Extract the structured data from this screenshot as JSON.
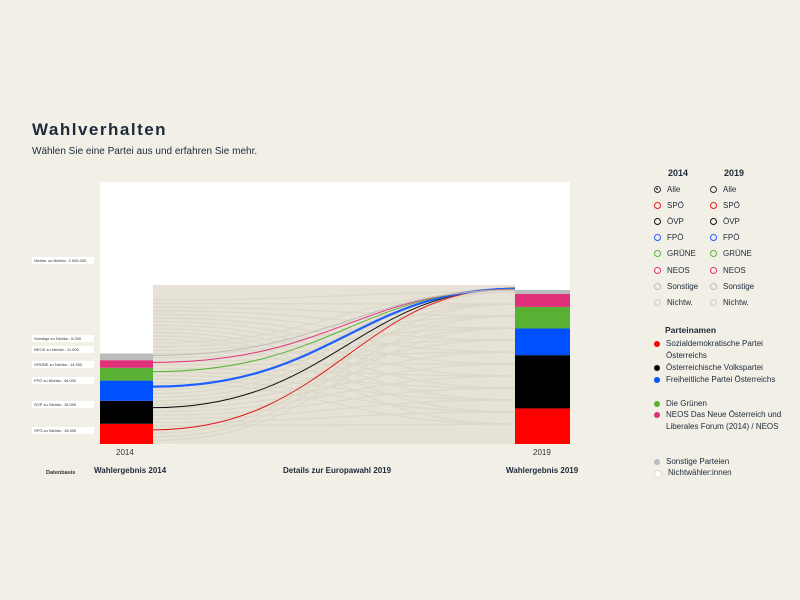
{
  "header": {
    "title": "Wahlverhalten",
    "subtitle": "Wählen Sie eine Partei aus und erfahren Sie mehr."
  },
  "legend": {
    "col2014": "2014",
    "col2019": "2019",
    "options": [
      "Alle",
      "SPÖ",
      "ÖVP",
      "FPÖ",
      "GRÜNE",
      "NEOS",
      "Sonstige",
      "Nichtw."
    ],
    "option_colors": [
      "#333333",
      "#e31a1c",
      "#111111",
      "#1f5fff",
      "#59b33b",
      "#e0337a",
      "#bbbbbb",
      "#eeeeee"
    ],
    "selected_2014": "Alle",
    "parteinamen_title": "Parteinamen",
    "parties": [
      {
        "name": "Sozialdemokratische Partei Österreichs",
        "color": "#ff0000"
      },
      {
        "name": "Österreichische Volkspartei",
        "color": "#000000"
      },
      {
        "name": "Freiheitliche Partei Österreichs",
        "color": "#0050ff"
      },
      {
        "name": "Die Grünen",
        "color": "#59b033"
      },
      {
        "name": "NEOS Das Neue Österreich und Liberales Forum (2014) / NEOS",
        "color": "#e0307a"
      },
      {
        "name": "Sonstige Parteien",
        "color": "#bbbbbb"
      },
      {
        "name": "Nichtwähler:innen",
        "color": "#ffffff"
      }
    ]
  },
  "flow_tags": [
    {
      "text": "Nichtw. zu Nichtw.: 2.926.000"
    },
    {
      "text": "Sonstige zu Nichtw.: 6.000"
    },
    {
      "text": "NEOS zu Nichtw.: 11.000"
    },
    {
      "text": "GRÜNE zu Nichtw.: 14.000"
    },
    {
      "text": "FPÖ zu Nichtw.: 44.000"
    },
    {
      "text": "ÖVP zu Nichtw.: 15.000"
    },
    {
      "text": "SPÖ zu Nichtw.: 18.000"
    }
  ],
  "footer": {
    "datenbasis": "Datenbasis",
    "left": "Wahlergebnis 2014",
    "center": "Details zur Europawahl 2019",
    "right": "Wahlergebnis 2019",
    "year_left": "2014",
    "year_right": "2019"
  },
  "chart_data": {
    "type": "sankey",
    "left_year": "2014",
    "right_year": "2019",
    "left_stack": [
      {
        "party": "SPÖ",
        "color": "#ff0000",
        "share": 0.077
      },
      {
        "party": "ÖVP",
        "color": "#000000",
        "share": 0.088
      },
      {
        "party": "FPÖ",
        "color": "#0050ff",
        "share": 0.077
      },
      {
        "party": "GRÜNE",
        "color": "#59b033",
        "share": 0.049
      },
      {
        "party": "NEOS",
        "color": "#e0307a",
        "share": 0.029
      },
      {
        "party": "Sonstige",
        "color": "#bbbbbb",
        "share": 0.026
      },
      {
        "party": "Nichtw.",
        "color": "#ffffff",
        "share": 0.654
      }
    ],
    "right_stack": [
      {
        "party": "SPÖ",
        "color": "#ff0000",
        "share": 0.231
      },
      {
        "party": "ÖVP",
        "color": "#000000",
        "share": 0.346
      },
      {
        "party": "FPÖ",
        "color": "#0050ff",
        "share": 0.173
      },
      {
        "party": "GRÜNE",
        "color": "#59b033",
        "share": 0.14
      },
      {
        "party": "NEOS",
        "color": "#e0307a",
        "share": 0.084
      },
      {
        "party": "Sonstige",
        "color": "#bbbbbb",
        "share": 0.026
      }
    ],
    "highlighted_flows": [
      {
        "from": "SPÖ",
        "to": "Nichtw.",
        "color": "#e31a1c",
        "value": 18000
      },
      {
        "from": "ÖVP",
        "to": "Nichtw.",
        "color": "#111111",
        "value": 15000
      },
      {
        "from": "FPÖ",
        "to": "Nichtw.",
        "color": "#1f5fff",
        "value": 44000
      },
      {
        "from": "GRÜNE",
        "to": "Nichtw.",
        "color": "#59b33b",
        "value": 14000
      },
      {
        "from": "NEOS",
        "to": "Nichtw.",
        "color": "#e0337a",
        "value": 11000
      },
      {
        "from": "Sonstige",
        "to": "Nichtw.",
        "color": "#bbbbbb",
        "value": 6000
      },
      {
        "from": "Nichtw.",
        "to": "Nichtw.",
        "color": "#ffffff",
        "value": 2926000
      }
    ]
  }
}
